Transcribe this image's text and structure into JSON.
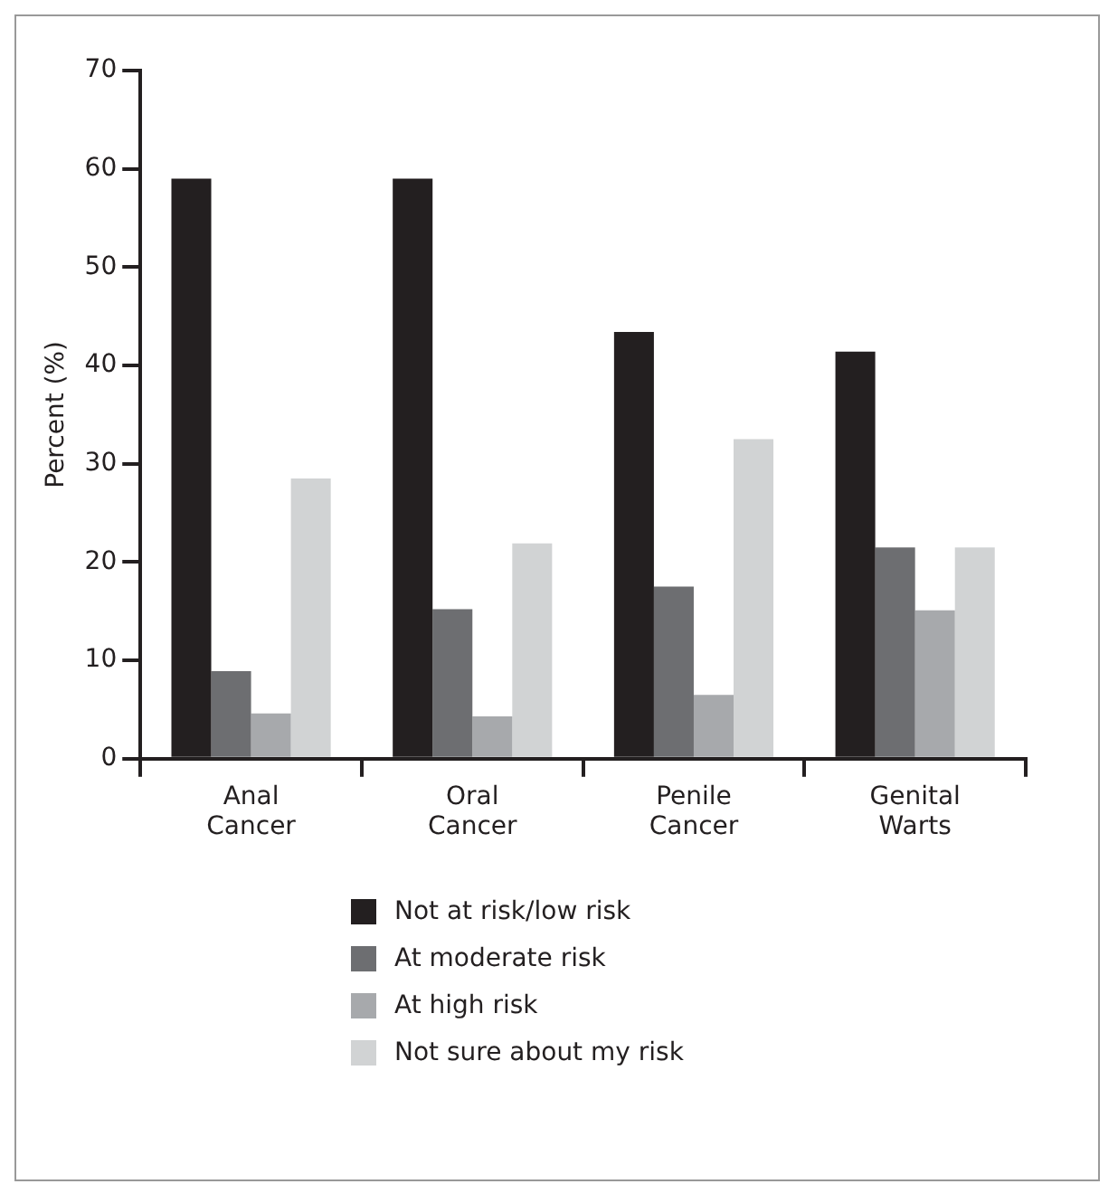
{
  "chart_data": {
    "type": "bar",
    "ylabel": "Percent (%)",
    "categories": [
      "Anal\nCancer",
      "Oral\nCancer",
      "Penile\nCancer",
      "Genital\nWarts"
    ],
    "series": [
      {
        "name": "Not at risk/low risk",
        "color": "#231f20",
        "values": [
          59,
          59,
          43.4,
          41.4
        ]
      },
      {
        "name": "At moderate risk",
        "color": "#6d6e71",
        "values": [
          8.9,
          15.2,
          17.5,
          21.5
        ]
      },
      {
        "name": "At high risk",
        "color": "#a7a9ac",
        "values": [
          4.6,
          4.3,
          6.5,
          15.1
        ]
      },
      {
        "name": "Not sure about my risk",
        "color": "#d1d3d4",
        "values": [
          28.5,
          21.9,
          32.5,
          21.5
        ]
      }
    ],
    "ylim": [
      0,
      70
    ],
    "yticks": [
      0,
      10,
      20,
      30,
      40,
      50,
      60,
      70
    ],
    "grid": false,
    "legend": "bottom"
  }
}
